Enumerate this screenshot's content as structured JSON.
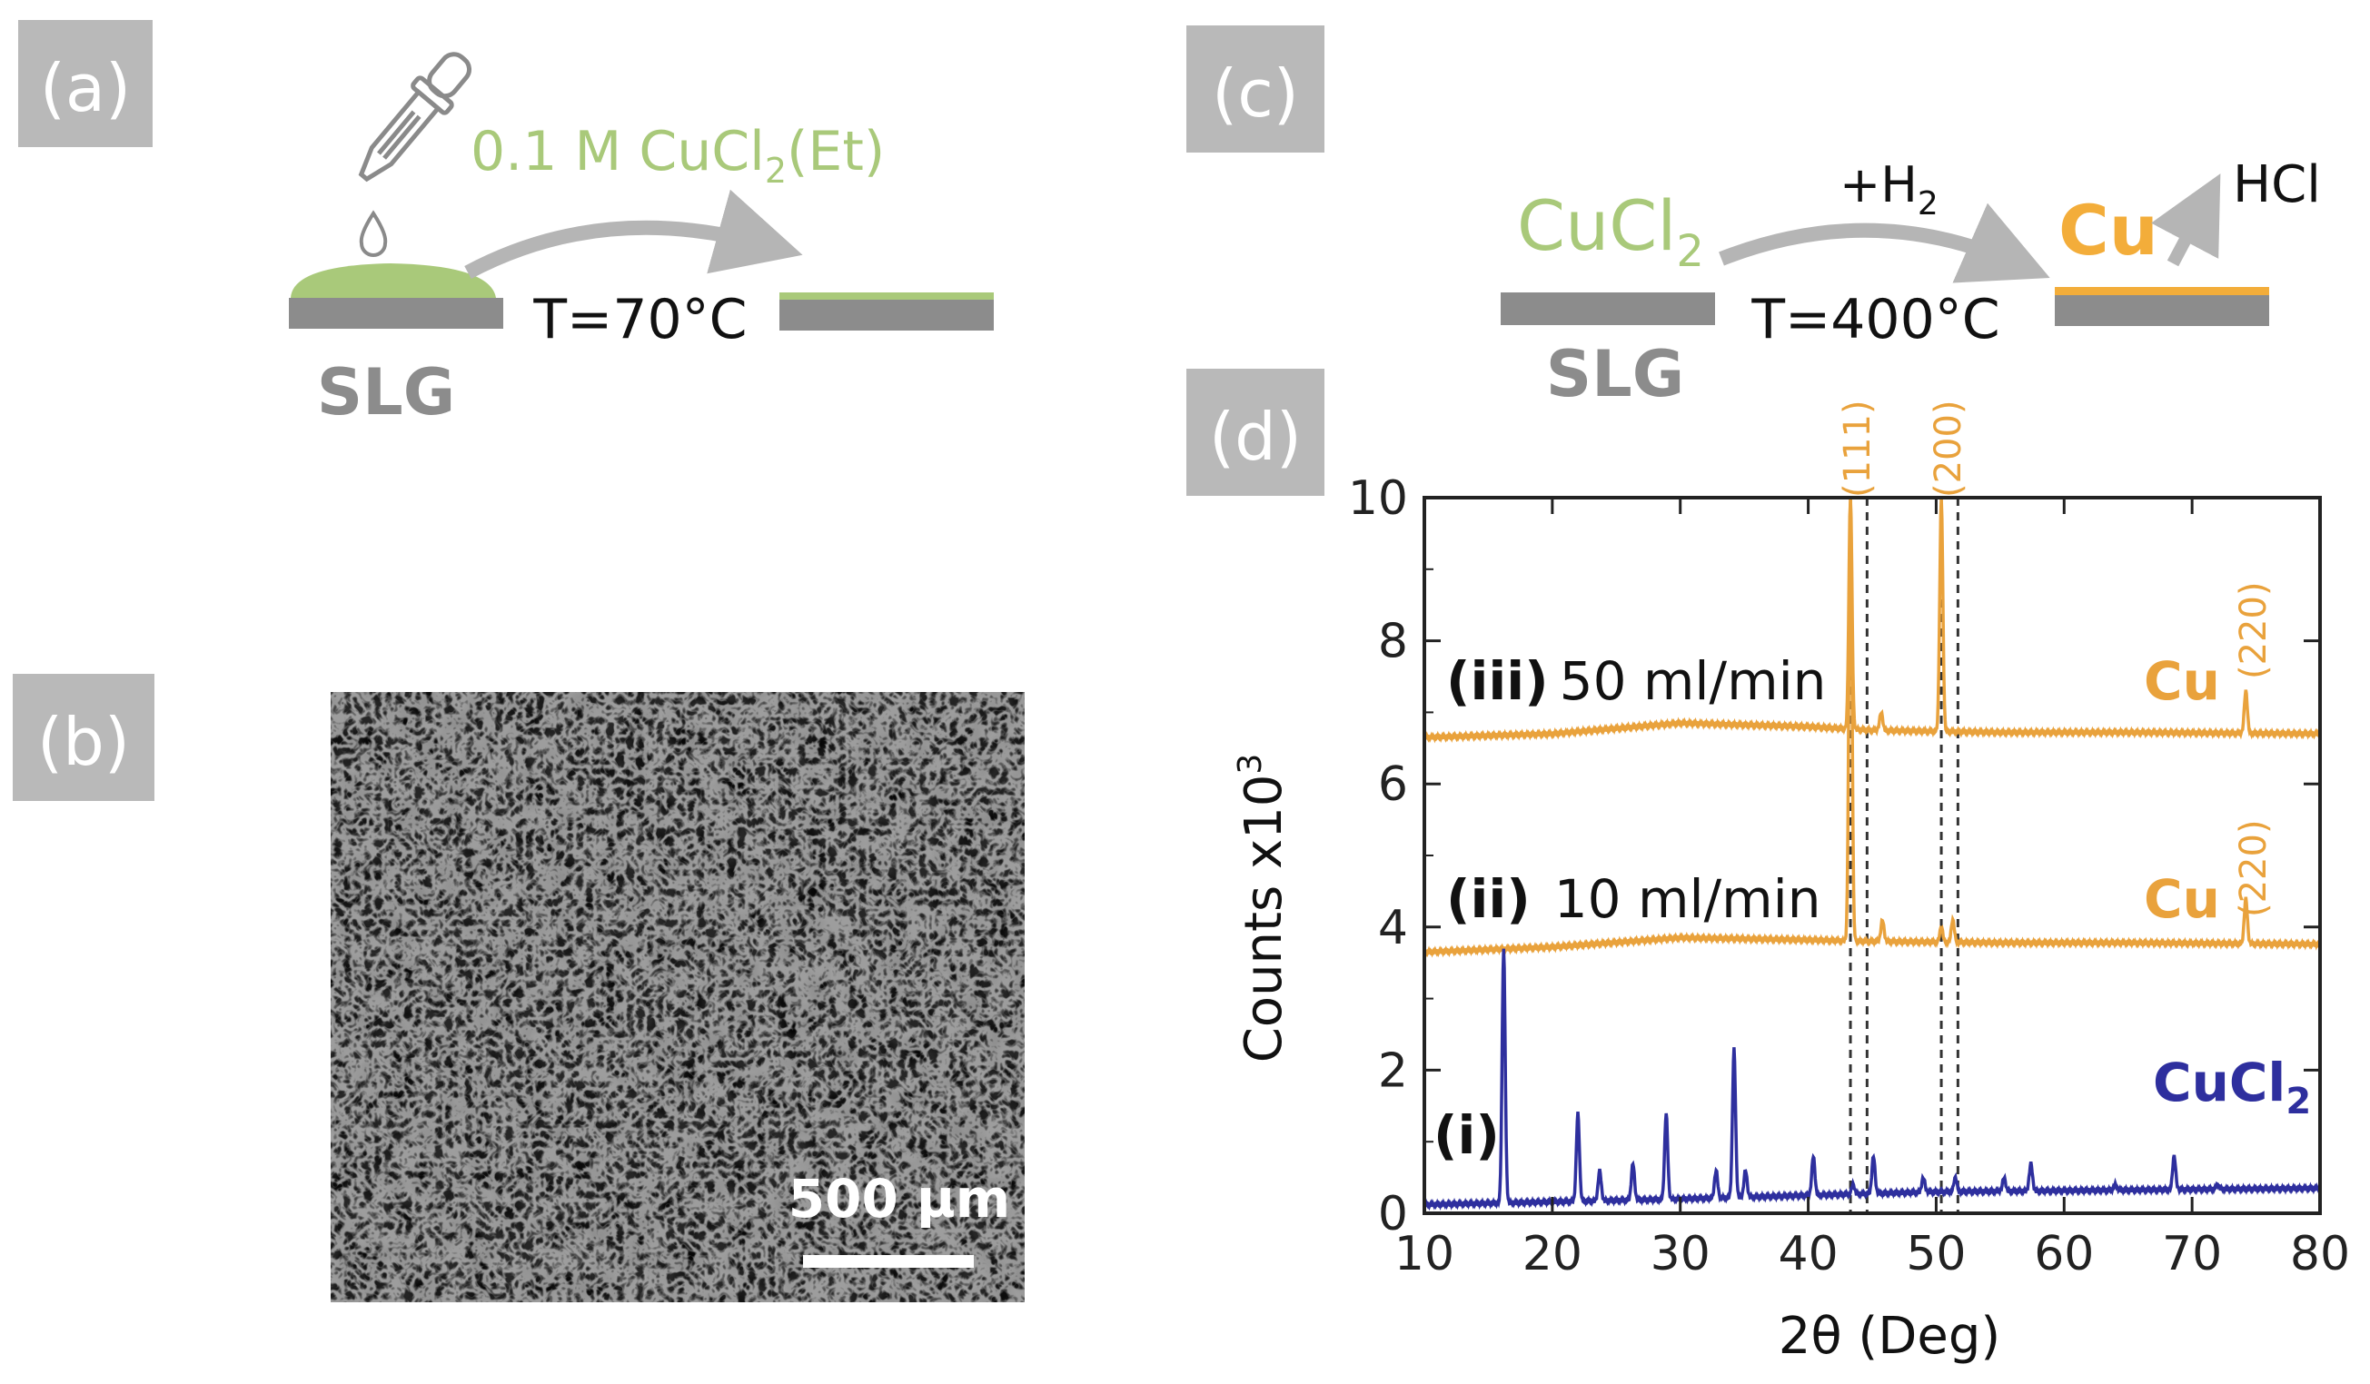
{
  "colors": {
    "tag_bg": "#b9b9b9",
    "substrate": "#8c8c8c",
    "cucl2_film": "#a9c97a",
    "arrow": "#b5b5b5",
    "cu": "#f3ad3a",
    "cu_trace": "#e9a23c",
    "cucl2_trace": "#2e2f9e",
    "text_dark": "#111111"
  },
  "panel_a": {
    "tag": "(a)",
    "solution_prefix": "0.1 M CuCl",
    "solution_sub": "2",
    "solution_suffix": "(Et)",
    "temperature": "T=70°C",
    "substrate_label": "SLG",
    "dropper": "dropper-icon"
  },
  "panel_b": {
    "tag": "(b)",
    "scale_bar": "500 µm"
  },
  "panel_c": {
    "tag": "(c)",
    "reactant_prefix": "CuCl",
    "reactant_sub": "2",
    "gas_prefix": "+H",
    "gas_sub": "2",
    "temperature": "T=400°C",
    "product": "Cu",
    "byproduct": "HCl",
    "substrate_label": "SLG"
  },
  "panel_d": {
    "tag": "(d)",
    "chart_data": {
      "type": "line",
      "xlabel": "2θ (Deg)",
      "ylabel": "Counts x10",
      "ylabel_sup": "3",
      "xlim": [
        10,
        80
      ],
      "ylim": [
        0,
        10
      ],
      "xticks": [
        10,
        20,
        30,
        40,
        50,
        60,
        70,
        80
      ],
      "yticks": [
        0,
        2,
        4,
        6,
        8,
        10
      ],
      "reference_lines_x": [
        43.3,
        44.6,
        50.4,
        51.7
      ],
      "peak_labels": [
        {
          "text": "(111)",
          "x": 43.9
        },
        {
          "text": "(200)",
          "x": 51.0
        },
        {
          "text": "(220)",
          "x": 74.6,
          "series": "(iii)"
        },
        {
          "text": "(220)",
          "x": 74.6,
          "series": "(ii)"
        }
      ],
      "series": [
        {
          "name": "(iii)",
          "label": "50 ml/min",
          "material": "Cu",
          "baseline": [
            [
              10,
              6.65
            ],
            [
              20,
              6.7
            ],
            [
              30,
              6.85
            ],
            [
              40,
              6.8
            ],
            [
              45,
              6.75
            ],
            [
              55,
              6.72
            ],
            [
              65,
              6.72
            ],
            [
              80,
              6.7
            ]
          ],
          "peaks": [
            [
              43.3,
              10.0
            ],
            [
              45.7,
              7.0
            ],
            [
              50.4,
              10.0
            ],
            [
              74.2,
              7.3
            ]
          ]
        },
        {
          "name": "(ii)",
          "label": "10 ml/min",
          "material": "Cu",
          "baseline": [
            [
              10,
              3.65
            ],
            [
              20,
              3.72
            ],
            [
              30,
              3.85
            ],
            [
              40,
              3.82
            ],
            [
              45,
              3.8
            ],
            [
              55,
              3.78
            ],
            [
              65,
              3.78
            ],
            [
              80,
              3.76
            ]
          ],
          "peaks": [
            [
              43.3,
              10.0
            ],
            [
              45.8,
              4.1
            ],
            [
              50.4,
              4.0
            ],
            [
              51.3,
              4.1
            ],
            [
              74.2,
              4.4
            ]
          ]
        },
        {
          "name": "(i)",
          "label": "",
          "material": "CuCl2",
          "baseline": [
            [
              10,
              0.12
            ],
            [
              30,
              0.2
            ],
            [
              50,
              0.3
            ],
            [
              80,
              0.35
            ]
          ],
          "peaks": [
            [
              16.2,
              3.7
            ],
            [
              22.0,
              1.4
            ],
            [
              23.7,
              0.6
            ],
            [
              26.3,
              0.7
            ],
            [
              28.9,
              1.4
            ],
            [
              32.8,
              0.6
            ],
            [
              34.2,
              2.3
            ],
            [
              35.1,
              0.6
            ],
            [
              40.4,
              0.8
            ],
            [
              43.5,
              0.4
            ],
            [
              45.1,
              0.8
            ],
            [
              49.0,
              0.5
            ],
            [
              51.5,
              0.5
            ],
            [
              55.3,
              0.5
            ],
            [
              57.4,
              0.7
            ],
            [
              64.0,
              0.4
            ],
            [
              68.6,
              0.8
            ],
            [
              72.0,
              0.4
            ]
          ]
        }
      ]
    }
  }
}
